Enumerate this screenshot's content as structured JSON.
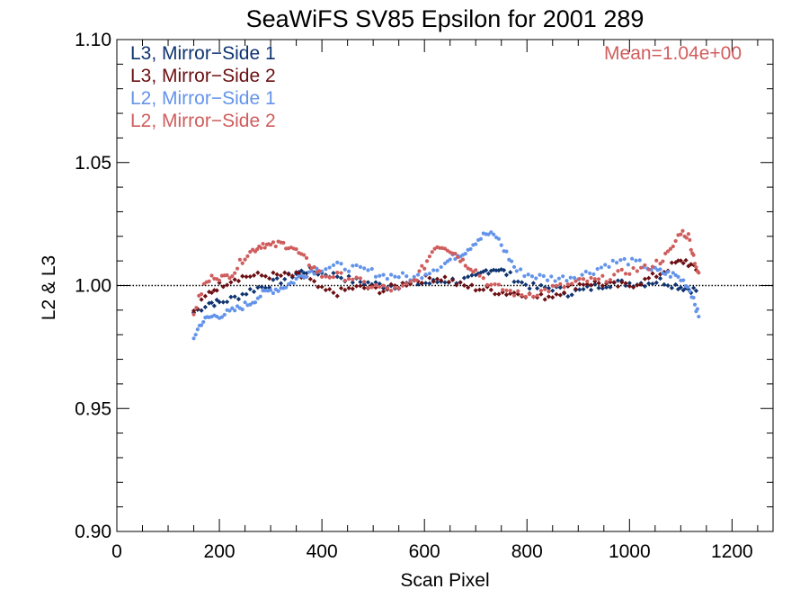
{
  "colors": {
    "L3_ms1": "#0f3470",
    "L3_ms2": "#6b0f12",
    "L2_ms1": "#6494ea",
    "L2_ms2": "#d05d5d",
    "reference_line": "#000000"
  },
  "chart_data": {
    "type": "scatter",
    "title": "SeaWiFS SV85 Epsilon for 2001 289",
    "xlabel": "Scan Pixel",
    "ylabel": "L2 & L3",
    "xlim": [
      0,
      1280
    ],
    "ylim": [
      0.9,
      1.1
    ],
    "xticks": [
      "0",
      "200",
      "400",
      "600",
      "800",
      "1000",
      "1200"
    ],
    "yticks": [
      "0.90",
      "0.95",
      "1.00",
      "1.05",
      "1.10"
    ],
    "reference_line": {
      "y": 1.0,
      "style": "dotted"
    },
    "annotation": "Mean=1.04e+00",
    "legend_position": "top-left",
    "series": [
      {
        "name": "L3, Mirror−Side 1",
        "marker": "diamond",
        "x": [
          150,
          180,
          200,
          230,
          260,
          290,
          320,
          350,
          370,
          400,
          430,
          460,
          490,
          520,
          550,
          580,
          610,
          640,
          670,
          700,
          720,
          740,
          760,
          790,
          820,
          850,
          880,
          910,
          940,
          970,
          1000,
          1030,
          1060,
          1090,
          1110,
          1130
        ],
        "y": [
          0.989,
          0.993,
          0.993,
          0.995,
          0.998,
          1.0,
          1.002,
          1.005,
          1.006,
          1.005,
          1.004,
          1.002,
          1.001,
          1.0,
          1.0,
          1.001,
          1.001,
          1.002,
          1.002,
          1.003,
          1.006,
          1.007,
          1.005,
          1.001,
          0.999,
          0.999,
          0.997,
          0.998,
          1.0,
          1.001,
          1.001,
          1.001,
          1.002,
          1.0,
          0.999,
          0.998
        ]
      },
      {
        "name": "L3, Mirror−Side 2",
        "marker": "diamond",
        "x": [
          150,
          180,
          200,
          230,
          260,
          290,
          320,
          350,
          370,
          400,
          430,
          460,
          490,
          520,
          550,
          580,
          610,
          640,
          670,
          700,
          730,
          760,
          790,
          820,
          850,
          880,
          910,
          940,
          970,
          1000,
          1030,
          1060,
          1090,
          1110,
          1130
        ],
        "y": [
          0.989,
          0.997,
          1.0,
          1.003,
          1.004,
          1.004,
          1.004,
          1.004,
          1.003,
          0.998,
          0.997,
          0.999,
          0.999,
          0.998,
          1.0,
          1.002,
          1.003,
          1.003,
          1.0,
          0.999,
          0.998,
          0.997,
          0.997,
          0.995,
          0.996,
          0.999,
          1.001,
          1.001,
          1.0,
          1.0,
          1.002,
          1.005,
          1.009,
          1.01,
          1.006
        ]
      },
      {
        "name": "L2, Mirror−Side 1",
        "marker": "dot",
        "x": [
          150,
          165,
          180,
          200,
          220,
          240,
          260,
          280,
          300,
          320,
          340,
          360,
          380,
          400,
          430,
          460,
          490,
          520,
          550,
          580,
          610,
          640,
          660,
          680,
          700,
          720,
          740,
          760,
          780,
          810,
          840,
          870,
          900,
          930,
          960,
          990,
          1020,
          1050,
          1070,
          1090,
          1110,
          1125,
          1135
        ],
        "y": [
          0.979,
          0.985,
          0.987,
          0.988,
          0.989,
          0.991,
          0.993,
          0.996,
          0.998,
          0.999,
          1.001,
          1.004,
          1.006,
          1.007,
          1.008,
          1.007,
          1.006,
          1.004,
          1.004,
          1.003,
          1.006,
          1.009,
          1.012,
          1.014,
          1.018,
          1.021,
          1.02,
          1.013,
          1.006,
          1.004,
          1.003,
          1.003,
          1.004,
          1.006,
          1.009,
          1.01,
          1.009,
          1.006,
          1.005,
          1.004,
          1.001,
          0.995,
          0.987
        ]
      },
      {
        "name": "L2, Mirror−Side 2",
        "marker": "dot",
        "x": [
          150,
          170,
          190,
          210,
          230,
          250,
          270,
          285,
          300,
          320,
          340,
          360,
          380,
          400,
          430,
          460,
          490,
          520,
          550,
          580,
          600,
          620,
          640,
          660,
          680,
          700,
          730,
          760,
          790,
          820,
          850,
          880,
          910,
          940,
          970,
          1000,
          1030,
          1060,
          1080,
          1100,
          1115,
          1125,
          1135
        ],
        "y": [
          0.989,
          1.0,
          1.004,
          1.003,
          1.006,
          1.012,
          1.015,
          1.017,
          1.016,
          1.017,
          1.016,
          1.012,
          1.008,
          1.004,
          1.004,
          1.003,
          1.0,
          0.999,
          0.998,
          1.002,
          1.008,
          1.016,
          1.016,
          1.013,
          1.009,
          1.006,
          1.0,
          0.998,
          0.996,
          0.997,
          0.999,
          1.0,
          1.002,
          1.002,
          1.004,
          1.006,
          1.007,
          1.01,
          1.014,
          1.022,
          1.02,
          1.012,
          1.004
        ]
      }
    ]
  }
}
